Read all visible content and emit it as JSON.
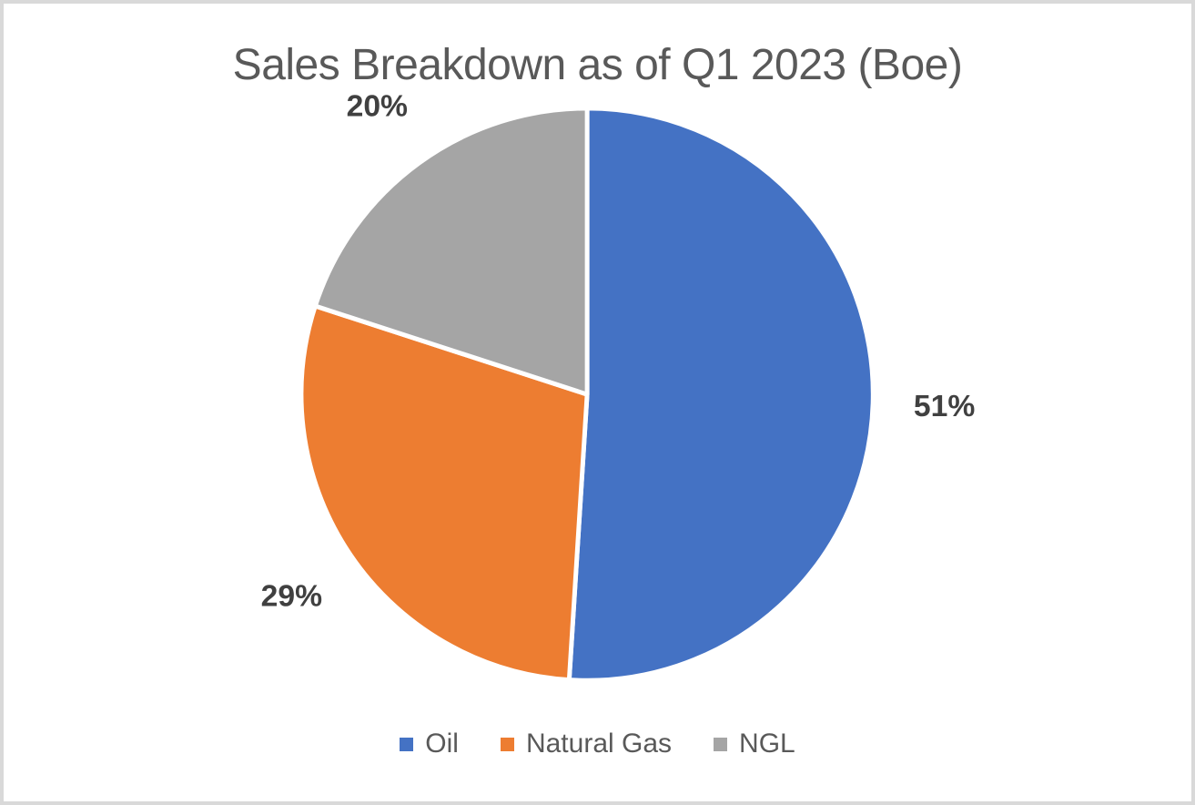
{
  "window": {
    "background": "#ffffff",
    "border_color": "#d9d9d9"
  },
  "chart_data": {
    "type": "pie",
    "title": "Sales Breakdown as of Q1 2023 (Boe)",
    "categories": [
      "Oil",
      "Natural Gas",
      "NGL"
    ],
    "values": [
      51,
      29,
      20
    ],
    "unit": "%",
    "data_labels": [
      "51%",
      "29%",
      "20%"
    ],
    "colors": [
      "#4472C4",
      "#ED7D31",
      "#A5A5A5"
    ],
    "start_angle_deg": 0,
    "direction": "clockwise",
    "legend_position": "bottom",
    "title_color": "#595959",
    "data_label_color": "#404040",
    "legend_text_color": "#595959",
    "slice_separator_color": "#ffffff"
  }
}
